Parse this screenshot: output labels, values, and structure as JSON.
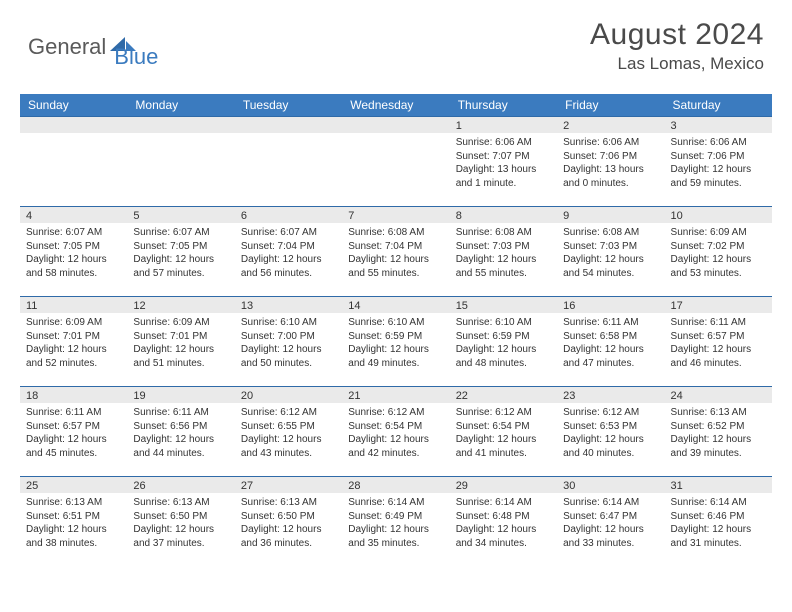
{
  "brand": {
    "general": "General",
    "blue": "Blue",
    "accent_color": "#3b7bbf",
    "text_color": "#5a5a5a"
  },
  "header": {
    "month_title": "August 2024",
    "location": "Las Lomas, Mexico"
  },
  "colors": {
    "header_bg": "#3b7bbf",
    "header_text": "#ffffff",
    "cell_border": "#2f6aa8",
    "daynum_bg": "#eaeaea",
    "body_text": "#333333",
    "page_bg": "#ffffff"
  },
  "weekdays": [
    "Sunday",
    "Monday",
    "Tuesday",
    "Wednesday",
    "Thursday",
    "Friday",
    "Saturday"
  ],
  "weeks": [
    [
      {
        "day": "",
        "sunrise": "",
        "sunset": "",
        "daylight": ""
      },
      {
        "day": "",
        "sunrise": "",
        "sunset": "",
        "daylight": ""
      },
      {
        "day": "",
        "sunrise": "",
        "sunset": "",
        "daylight": ""
      },
      {
        "day": "",
        "sunrise": "",
        "sunset": "",
        "daylight": ""
      },
      {
        "day": "1",
        "sunrise": "Sunrise: 6:06 AM",
        "sunset": "Sunset: 7:07 PM",
        "daylight": "Daylight: 13 hours and 1 minute."
      },
      {
        "day": "2",
        "sunrise": "Sunrise: 6:06 AM",
        "sunset": "Sunset: 7:06 PM",
        "daylight": "Daylight: 13 hours and 0 minutes."
      },
      {
        "day": "3",
        "sunrise": "Sunrise: 6:06 AM",
        "sunset": "Sunset: 7:06 PM",
        "daylight": "Daylight: 12 hours and 59 minutes."
      }
    ],
    [
      {
        "day": "4",
        "sunrise": "Sunrise: 6:07 AM",
        "sunset": "Sunset: 7:05 PM",
        "daylight": "Daylight: 12 hours and 58 minutes."
      },
      {
        "day": "5",
        "sunrise": "Sunrise: 6:07 AM",
        "sunset": "Sunset: 7:05 PM",
        "daylight": "Daylight: 12 hours and 57 minutes."
      },
      {
        "day": "6",
        "sunrise": "Sunrise: 6:07 AM",
        "sunset": "Sunset: 7:04 PM",
        "daylight": "Daylight: 12 hours and 56 minutes."
      },
      {
        "day": "7",
        "sunrise": "Sunrise: 6:08 AM",
        "sunset": "Sunset: 7:04 PM",
        "daylight": "Daylight: 12 hours and 55 minutes."
      },
      {
        "day": "8",
        "sunrise": "Sunrise: 6:08 AM",
        "sunset": "Sunset: 7:03 PM",
        "daylight": "Daylight: 12 hours and 55 minutes."
      },
      {
        "day": "9",
        "sunrise": "Sunrise: 6:08 AM",
        "sunset": "Sunset: 7:03 PM",
        "daylight": "Daylight: 12 hours and 54 minutes."
      },
      {
        "day": "10",
        "sunrise": "Sunrise: 6:09 AM",
        "sunset": "Sunset: 7:02 PM",
        "daylight": "Daylight: 12 hours and 53 minutes."
      }
    ],
    [
      {
        "day": "11",
        "sunrise": "Sunrise: 6:09 AM",
        "sunset": "Sunset: 7:01 PM",
        "daylight": "Daylight: 12 hours and 52 minutes."
      },
      {
        "day": "12",
        "sunrise": "Sunrise: 6:09 AM",
        "sunset": "Sunset: 7:01 PM",
        "daylight": "Daylight: 12 hours and 51 minutes."
      },
      {
        "day": "13",
        "sunrise": "Sunrise: 6:10 AM",
        "sunset": "Sunset: 7:00 PM",
        "daylight": "Daylight: 12 hours and 50 minutes."
      },
      {
        "day": "14",
        "sunrise": "Sunrise: 6:10 AM",
        "sunset": "Sunset: 6:59 PM",
        "daylight": "Daylight: 12 hours and 49 minutes."
      },
      {
        "day": "15",
        "sunrise": "Sunrise: 6:10 AM",
        "sunset": "Sunset: 6:59 PM",
        "daylight": "Daylight: 12 hours and 48 minutes."
      },
      {
        "day": "16",
        "sunrise": "Sunrise: 6:11 AM",
        "sunset": "Sunset: 6:58 PM",
        "daylight": "Daylight: 12 hours and 47 minutes."
      },
      {
        "day": "17",
        "sunrise": "Sunrise: 6:11 AM",
        "sunset": "Sunset: 6:57 PM",
        "daylight": "Daylight: 12 hours and 46 minutes."
      }
    ],
    [
      {
        "day": "18",
        "sunrise": "Sunrise: 6:11 AM",
        "sunset": "Sunset: 6:57 PM",
        "daylight": "Daylight: 12 hours and 45 minutes."
      },
      {
        "day": "19",
        "sunrise": "Sunrise: 6:11 AM",
        "sunset": "Sunset: 6:56 PM",
        "daylight": "Daylight: 12 hours and 44 minutes."
      },
      {
        "day": "20",
        "sunrise": "Sunrise: 6:12 AM",
        "sunset": "Sunset: 6:55 PM",
        "daylight": "Daylight: 12 hours and 43 minutes."
      },
      {
        "day": "21",
        "sunrise": "Sunrise: 6:12 AM",
        "sunset": "Sunset: 6:54 PM",
        "daylight": "Daylight: 12 hours and 42 minutes."
      },
      {
        "day": "22",
        "sunrise": "Sunrise: 6:12 AM",
        "sunset": "Sunset: 6:54 PM",
        "daylight": "Daylight: 12 hours and 41 minutes."
      },
      {
        "day": "23",
        "sunrise": "Sunrise: 6:12 AM",
        "sunset": "Sunset: 6:53 PM",
        "daylight": "Daylight: 12 hours and 40 minutes."
      },
      {
        "day": "24",
        "sunrise": "Sunrise: 6:13 AM",
        "sunset": "Sunset: 6:52 PM",
        "daylight": "Daylight: 12 hours and 39 minutes."
      }
    ],
    [
      {
        "day": "25",
        "sunrise": "Sunrise: 6:13 AM",
        "sunset": "Sunset: 6:51 PM",
        "daylight": "Daylight: 12 hours and 38 minutes."
      },
      {
        "day": "26",
        "sunrise": "Sunrise: 6:13 AM",
        "sunset": "Sunset: 6:50 PM",
        "daylight": "Daylight: 12 hours and 37 minutes."
      },
      {
        "day": "27",
        "sunrise": "Sunrise: 6:13 AM",
        "sunset": "Sunset: 6:50 PM",
        "daylight": "Daylight: 12 hours and 36 minutes."
      },
      {
        "day": "28",
        "sunrise": "Sunrise: 6:14 AM",
        "sunset": "Sunset: 6:49 PM",
        "daylight": "Daylight: 12 hours and 35 minutes."
      },
      {
        "day": "29",
        "sunrise": "Sunrise: 6:14 AM",
        "sunset": "Sunset: 6:48 PM",
        "daylight": "Daylight: 12 hours and 34 minutes."
      },
      {
        "day": "30",
        "sunrise": "Sunrise: 6:14 AM",
        "sunset": "Sunset: 6:47 PM",
        "daylight": "Daylight: 12 hours and 33 minutes."
      },
      {
        "day": "31",
        "sunrise": "Sunrise: 6:14 AM",
        "sunset": "Sunset: 6:46 PM",
        "daylight": "Daylight: 12 hours and 31 minutes."
      }
    ]
  ]
}
